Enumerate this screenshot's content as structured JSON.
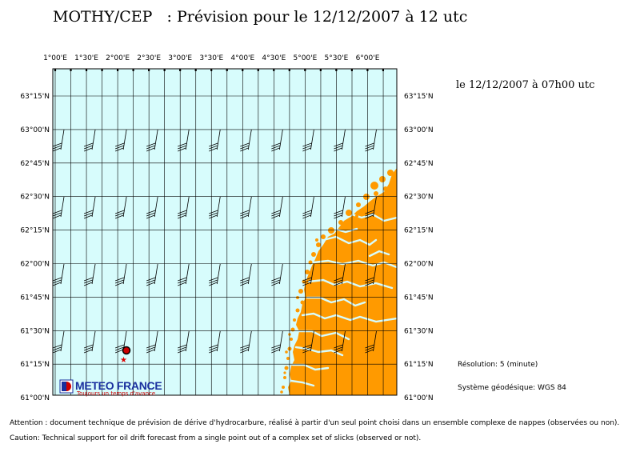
{
  "header": {
    "product": "MOTHY/CEP",
    "forecast": ": Prévision pour le 12/12/2007 à 12 utc"
  },
  "panel": {
    "datetime": "le 12/12/2007 à 07h00 utc",
    "resolution": "Résolution: 5 (minute)",
    "datum": "Système géodésique: WGS 84"
  },
  "map": {
    "lon_labels": [
      "1°00'E",
      "1°30'E",
      "2°00'E",
      "2°30'E",
      "3°00'E",
      "3°30'E",
      "4°00'E",
      "4°30'E",
      "5°00'E",
      "5°30'E",
      "6°00'E"
    ],
    "lat_labels": [
      "63°15'N",
      "63°00'N",
      "62°45'N",
      "62°30'N",
      "62°15'N",
      "62°00'N",
      "61°45'N",
      "61°30'N",
      "61°15'N",
      "61°00'N"
    ],
    "sea_color": "#d7fcfc",
    "land_color": "#ff9a00",
    "slick_marker_color": "#cc0000",
    "spill_star_color": "#dd0000"
  },
  "logo": {
    "name": "METEO FRANCE",
    "tagline": "Toujours un temps d'avance",
    "color": "#1a2f9e"
  },
  "footer": {
    "fr": "Attention : document technique de prévision de dérive d'hydrocarbure, réalisé à partir d'un seul point choisi dans un ensemble complexe de nappes (observées ou non).",
    "en": "Caution: Technical support for oil drift forecast from a single point out of a complex set of slicks (observed or not)."
  }
}
